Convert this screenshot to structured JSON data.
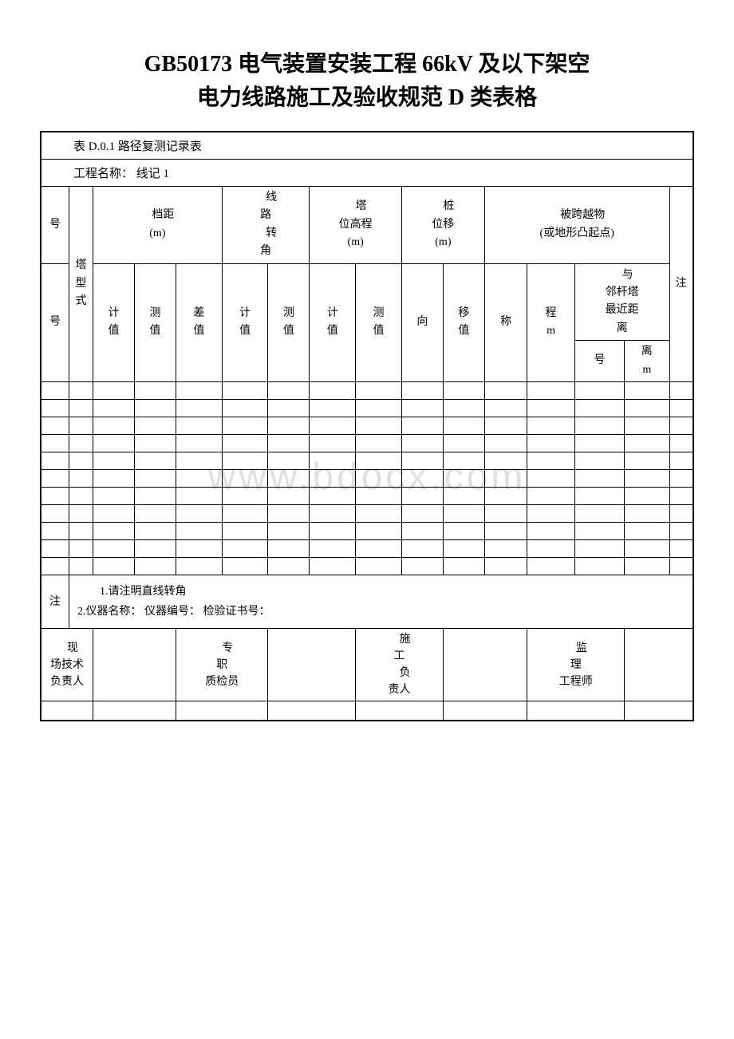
{
  "title_line1": "GB50173 电气装置安装工程 66kV 及以下架空",
  "title_line2": "电力线路施工及验收规范 D 类表格",
  "table_number": "表 D.0.1 路径复测记录表",
  "project_label": "工程名称：",
  "project_value": "线记 1",
  "watermark": "www.bdocx.com",
  "headers": {
    "hao1": "号",
    "hao2": "号",
    "ta_xing_shi": "塔型式",
    "dang_ju": "档距(m)",
    "xian_lu_zhuan_jiao": "线路转角",
    "ta_wei_gao_cheng": "塔位高程(m)",
    "zhuang_wei_yi": "桩位移(m)",
    "bei_kua_yue": "被跨越物(或地形凸起点)",
    "zhu": "注",
    "ji_zhi": "计值",
    "ce_zhi": "测值",
    "cha_zhi": "差值",
    "xiang": "向",
    "yi_zhi": "移值",
    "cheng": "称",
    "cheng_m": "程m",
    "lin_gan": "与邻杆塔最近距离",
    "hao_sub": "号",
    "li_m": "离m"
  },
  "notes": {
    "label": "注",
    "line1": "1.请注明直线转角",
    "line2": "2.仪器名称：  仪器编号：  检验证书号："
  },
  "signatures": {
    "xian_chang": "现场技术负责人",
    "zhuan_zhi": "专职质检员",
    "shi_gong": "施工负责人",
    "jian_li": "监理工程师"
  },
  "colors": {
    "text": "#000000",
    "border": "#000000",
    "background": "#ffffff",
    "watermark": "#e0e0e0"
  },
  "empty_data_rows": 11
}
